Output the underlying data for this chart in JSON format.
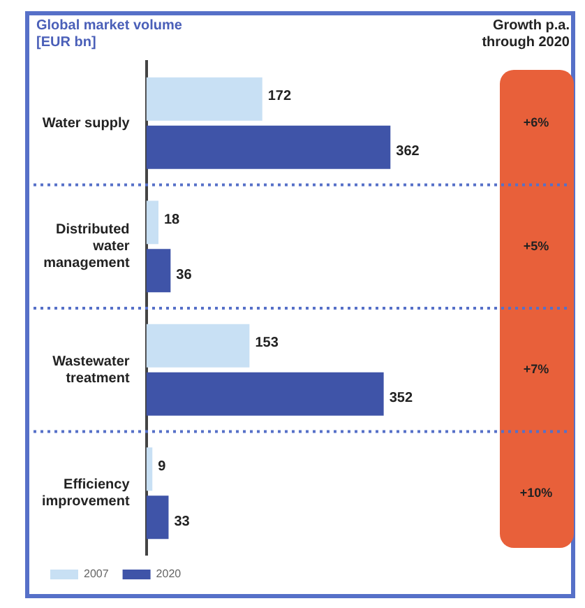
{
  "chart_data": {
    "type": "bar",
    "orientation": "horizontal",
    "title": "Global market volume [EUR bn]",
    "categories": [
      "Water supply",
      "Distributed water management",
      "Wastewater treatment",
      "Efficiency improvement"
    ],
    "series": [
      {
        "name": "2007",
        "color": "#c8e0f4",
        "values": [
          172,
          18,
          153,
          9
        ]
      },
      {
        "name": "2020",
        "color": "#3f54a8",
        "values": [
          362,
          36,
          352,
          33
        ]
      }
    ],
    "tick_labels": "y",
    "grid": "y",
    "line_style": "dotted",
    "data_labels": true,
    "legend": "bottom left",
    "annotations": [
      "Growth p.a. through 2020",
      "+6%",
      "+5%",
      "+7%",
      "+10%"
    ]
  }
}
